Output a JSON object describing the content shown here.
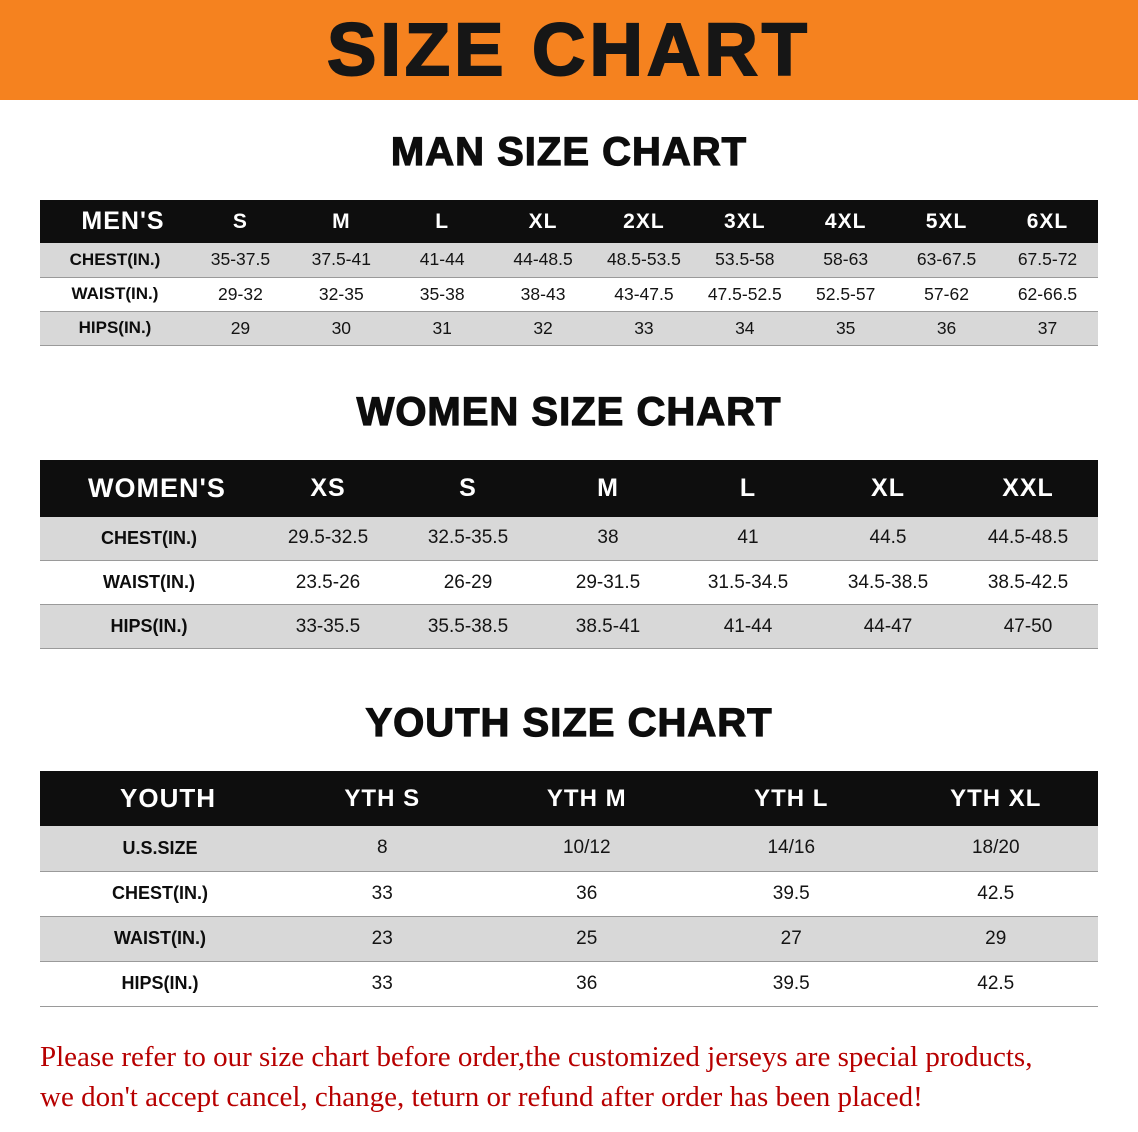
{
  "banner": {
    "title": "SIZE CHART"
  },
  "men": {
    "heading": "MAN SIZE CHART",
    "table": {
      "header": [
        "MEN'S",
        "S",
        "M",
        "L",
        "XL",
        "2XL",
        "3XL",
        "4XL",
        "5XL",
        "6XL"
      ],
      "rows": [
        [
          "CHEST(IN.)",
          "35-37.5",
          "37.5-41",
          "41-44",
          "44-48.5",
          "48.5-53.5",
          "53.5-58",
          "58-63",
          "63-67.5",
          "67.5-72"
        ],
        [
          "WAIST(IN.)",
          "29-32",
          "32-35",
          "35-38",
          "38-43",
          "43-47.5",
          "47.5-52.5",
          "52.5-57",
          "57-62",
          "62-66.5"
        ],
        [
          "HIPS(IN.)",
          "29",
          "30",
          "31",
          "32",
          "33",
          "34",
          "35",
          "36",
          "37"
        ]
      ]
    }
  },
  "women": {
    "heading": "WOMEN SIZE CHART",
    "table": {
      "header": [
        "WOMEN'S",
        "XS",
        "S",
        "M",
        "L",
        "XL",
        "XXL"
      ],
      "rows": [
        [
          "CHEST(IN.)",
          "29.5-32.5",
          "32.5-35.5",
          "38",
          "41",
          "44.5",
          "44.5-48.5"
        ],
        [
          "WAIST(IN.)",
          "23.5-26",
          "26-29",
          "29-31.5",
          "31.5-34.5",
          "34.5-38.5",
          "38.5-42.5"
        ],
        [
          "HIPS(IN.)",
          "33-35.5",
          "35.5-38.5",
          "38.5-41",
          "41-44",
          "44-47",
          "47-50"
        ]
      ]
    }
  },
  "youth": {
    "heading": "YOUTH SIZE CHART",
    "table": {
      "header": [
        "YOUTH",
        "YTH S",
        "YTH M",
        "YTH L",
        "YTH XL"
      ],
      "rows": [
        [
          "U.S.SIZE",
          "8",
          "10/12",
          "14/16",
          "18/20"
        ],
        [
          "CHEST(IN.)",
          "33",
          "36",
          "39.5",
          "42.5"
        ],
        [
          "WAIST(IN.)",
          "23",
          "25",
          "27",
          "29"
        ],
        [
          "HIPS(IN.)",
          "33",
          "36",
          "39.5",
          "42.5"
        ]
      ]
    }
  },
  "disclaimer": {
    "line1": "Please refer to our size chart before order,the customized jerseys are special products,",
    "line2": "we don't accept cancel, change, teturn or refund after order has been placed!"
  },
  "colors": {
    "banner_orange": "#F5821F",
    "header_black": "#0e0e0e",
    "row_gray": "#d8d8d8",
    "disclaimer_red": "#b70000"
  }
}
